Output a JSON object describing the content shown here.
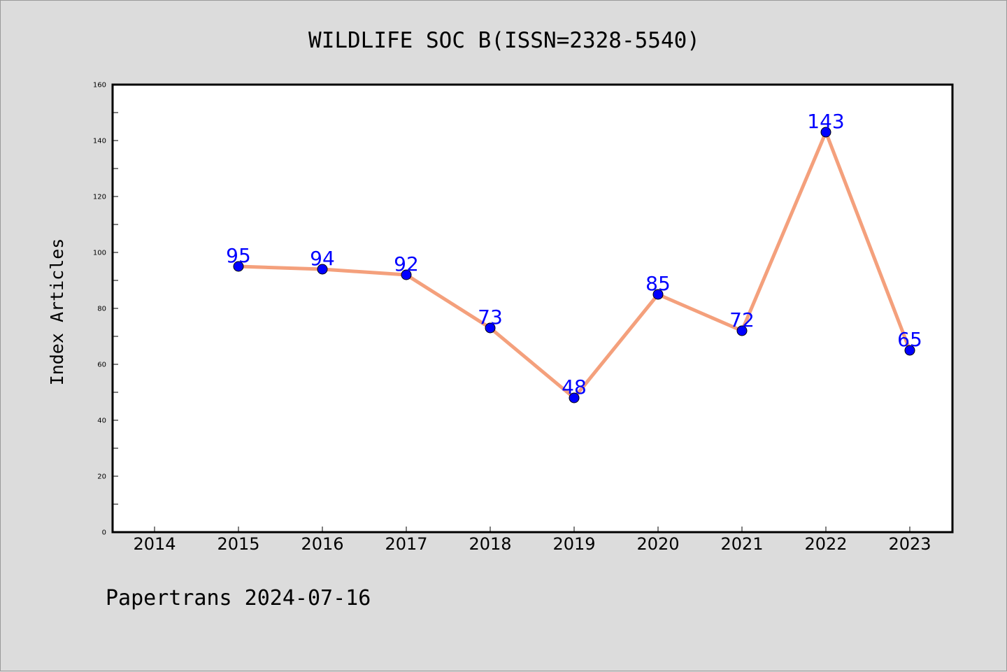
{
  "colors": {
    "background": "#dcdcdc",
    "plot_background": "#ffffff",
    "line": "#f4a07c",
    "marker": "#0000ff",
    "data_label": "#0000ff",
    "text": "#000000"
  },
  "footer": {
    "text": "Papertrans 2024-07-16"
  },
  "chart_data": {
    "type": "line",
    "title": "WILDLIFE SOC B(ISSN=2328-5540)",
    "xlabel": "",
    "ylabel": "Index Articles",
    "categories": [
      "2014",
      "2015",
      "2016",
      "2017",
      "2018",
      "2019",
      "2020",
      "2021",
      "2022",
      "2023"
    ],
    "series": [
      {
        "x": [
          "2015",
          "2016",
          "2017",
          "2018",
          "2019",
          "2020",
          "2021",
          "2022",
          "2023"
        ],
        "values": [
          95,
          94,
          92,
          73,
          48,
          85,
          72,
          143,
          65
        ],
        "labels": [
          "95",
          "94",
          "92",
          "73",
          "48",
          "85",
          "72",
          "143",
          "65"
        ]
      }
    ],
    "ylim": [
      0,
      160
    ],
    "y_ticks": [
      "0",
      "20",
      "40",
      "60",
      "80",
      "100",
      "120",
      "140",
      "160"
    ],
    "y_minor_step": 10,
    "grid": false,
    "legend": "none"
  }
}
